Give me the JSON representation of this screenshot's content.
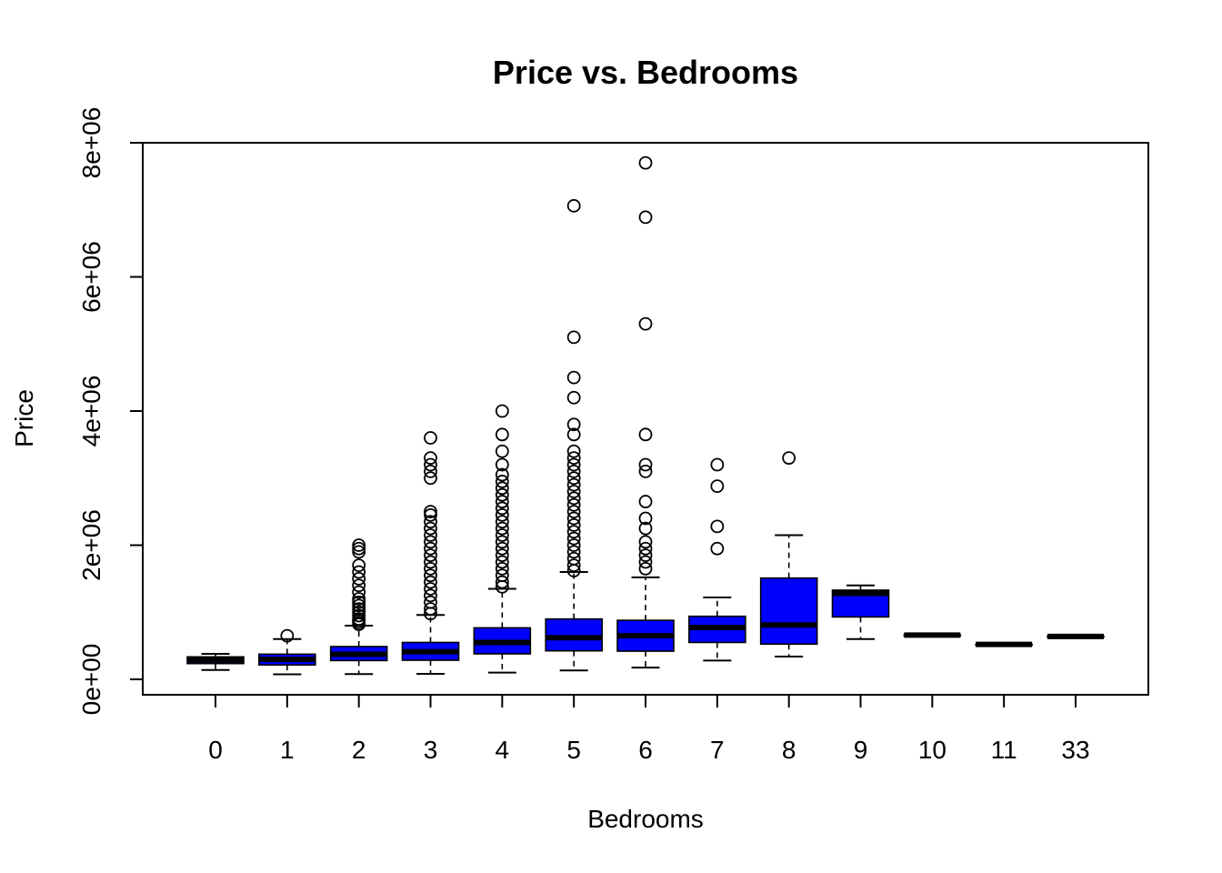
{
  "chart_data": {
    "type": "boxplot",
    "title": "Price vs. Bedrooms",
    "xlabel": "Bedrooms",
    "ylabel": "Price",
    "ylim": [
      -230000,
      8000000
    ],
    "yticks": [
      0,
      2000000,
      4000000,
      6000000,
      8000000
    ],
    "ytick_labels": [
      "0e+00",
      "2e+06",
      "4e+06",
      "6e+06",
      "8e+06"
    ],
    "box_color": "#0000ff",
    "categories": [
      "0",
      "1",
      "2",
      "3",
      "4",
      "5",
      "6",
      "7",
      "8",
      "9",
      "10",
      "11",
      "33"
    ],
    "boxes": [
      {
        "cat": "0",
        "lw": 139950,
        "q1": 235000,
        "med": 288000,
        "q3": 335000,
        "uw": 380000,
        "outliers": []
      },
      {
        "cat": "1",
        "lw": 75000,
        "q1": 215000,
        "med": 299000,
        "q3": 375000,
        "uw": 600000,
        "outliers": [
          650000
        ]
      },
      {
        "cat": "2",
        "lw": 78000,
        "q1": 280000,
        "med": 374000,
        "q3": 489000,
        "uw": 800000,
        "outliers": [
          820000,
          850000,
          880000,
          900000,
          950000,
          1000000,
          1050000,
          1100000,
          1150000,
          1200000,
          1300000,
          1400000,
          1500000,
          1600000,
          1700000,
          1900000,
          1950000,
          2000000
        ]
      },
      {
        "cat": "3",
        "lw": 82000,
        "q1": 285000,
        "med": 413000,
        "q3": 550000,
        "uw": 960000,
        "outliers": [
          980000,
          1050000,
          1150000,
          1250000,
          1350000,
          1450000,
          1550000,
          1650000,
          1750000,
          1850000,
          1950000,
          2050000,
          2150000,
          2250000,
          2350000,
          2450000,
          2500000,
          3000000,
          3100000,
          3200000,
          3300000,
          3600000
        ]
      },
      {
        "cat": "4",
        "lw": 100000,
        "q1": 380000,
        "med": 549000,
        "q3": 768000,
        "uw": 1350000,
        "outliers": [
          1380000,
          1450000,
          1550000,
          1650000,
          1750000,
          1850000,
          1950000,
          2050000,
          2150000,
          2250000,
          2350000,
          2450000,
          2550000,
          2650000,
          2750000,
          2850000,
          2950000,
          3050000,
          3200000,
          3400000,
          3650000,
          4000000
        ]
      },
      {
        "cat": "5",
        "lw": 133000,
        "q1": 425000,
        "med": 620000,
        "q3": 900000,
        "uw": 1600000,
        "outliers": [
          1620000,
          1700000,
          1800000,
          1900000,
          2000000,
          2100000,
          2200000,
          2300000,
          2400000,
          2500000,
          2600000,
          2700000,
          2800000,
          2900000,
          3000000,
          3100000,
          3200000,
          3300000,
          3400000,
          3650000,
          3800000,
          4200000,
          4500000,
          5100000,
          7060000
        ]
      },
      {
        "cat": "6",
        "lw": 175000,
        "q1": 420000,
        "med": 650000,
        "q3": 880000,
        "uw": 1520000,
        "outliers": [
          1650000,
          1750000,
          1850000,
          1950000,
          2050000,
          2250000,
          2400000,
          2650000,
          3100000,
          3200000,
          3650000,
          5300000,
          6890000,
          7700000
        ]
      },
      {
        "cat": "7",
        "lw": 280000,
        "q1": 550000,
        "med": 772000,
        "q3": 940000,
        "uw": 1220000,
        "outliers": [
          1950000,
          2280000,
          2880000,
          3200000
        ]
      },
      {
        "cat": "8",
        "lw": 340000,
        "q1": 525000,
        "med": 810000,
        "q3": 1510000,
        "uw": 2150000,
        "outliers": [
          3300000
        ]
      },
      {
        "cat": "9",
        "lw": 600000,
        "q1": 930000,
        "med": 1280000,
        "q3": 1330000,
        "uw": 1400000,
        "outliers": []
      },
      {
        "cat": "10",
        "lw": 660000,
        "q1": 660000,
        "med": 660000,
        "q3": 660000,
        "uw": 660000,
        "outliers": []
      },
      {
        "cat": "11",
        "lw": 520000,
        "q1": 520000,
        "med": 520000,
        "q3": 520000,
        "uw": 520000,
        "outliers": []
      },
      {
        "cat": "33",
        "lw": 640000,
        "q1": 640000,
        "med": 640000,
        "q3": 640000,
        "uw": 640000,
        "outliers": []
      }
    ]
  }
}
